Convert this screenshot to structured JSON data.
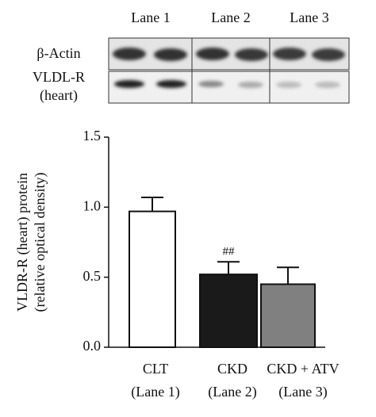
{
  "blot": {
    "lanes": [
      "Lane 1",
      "Lane 2",
      "Lane 3"
    ],
    "rows": [
      [
        "β-Actin"
      ],
      [
        "VLDL-R",
        "(heart)"
      ]
    ]
  },
  "chart_data": {
    "type": "bar",
    "ylabel": [
      "VLDR-R (heart) protein",
      "(relative optical density)"
    ],
    "categories": [
      "CLT",
      "CKD",
      "CKD + ATV"
    ],
    "category_sublabels": [
      "(Lane 1)",
      "(Lane 2)",
      "(Lane 3)"
    ],
    "values": [
      0.97,
      0.52,
      0.45
    ],
    "errors": [
      0.1,
      0.09,
      0.12
    ],
    "colors": [
      "#ffffff",
      "#1a1a1a",
      "#808080"
    ],
    "annotations": [
      {
        "category": 1,
        "text": "##"
      }
    ],
    "ylim": [
      0,
      1.5
    ],
    "yticks": [
      {
        "value": 0,
        "label": "0.0"
      },
      0.5,
      {
        "value": 1,
        "label": "1.0"
      },
      1.5
    ]
  }
}
